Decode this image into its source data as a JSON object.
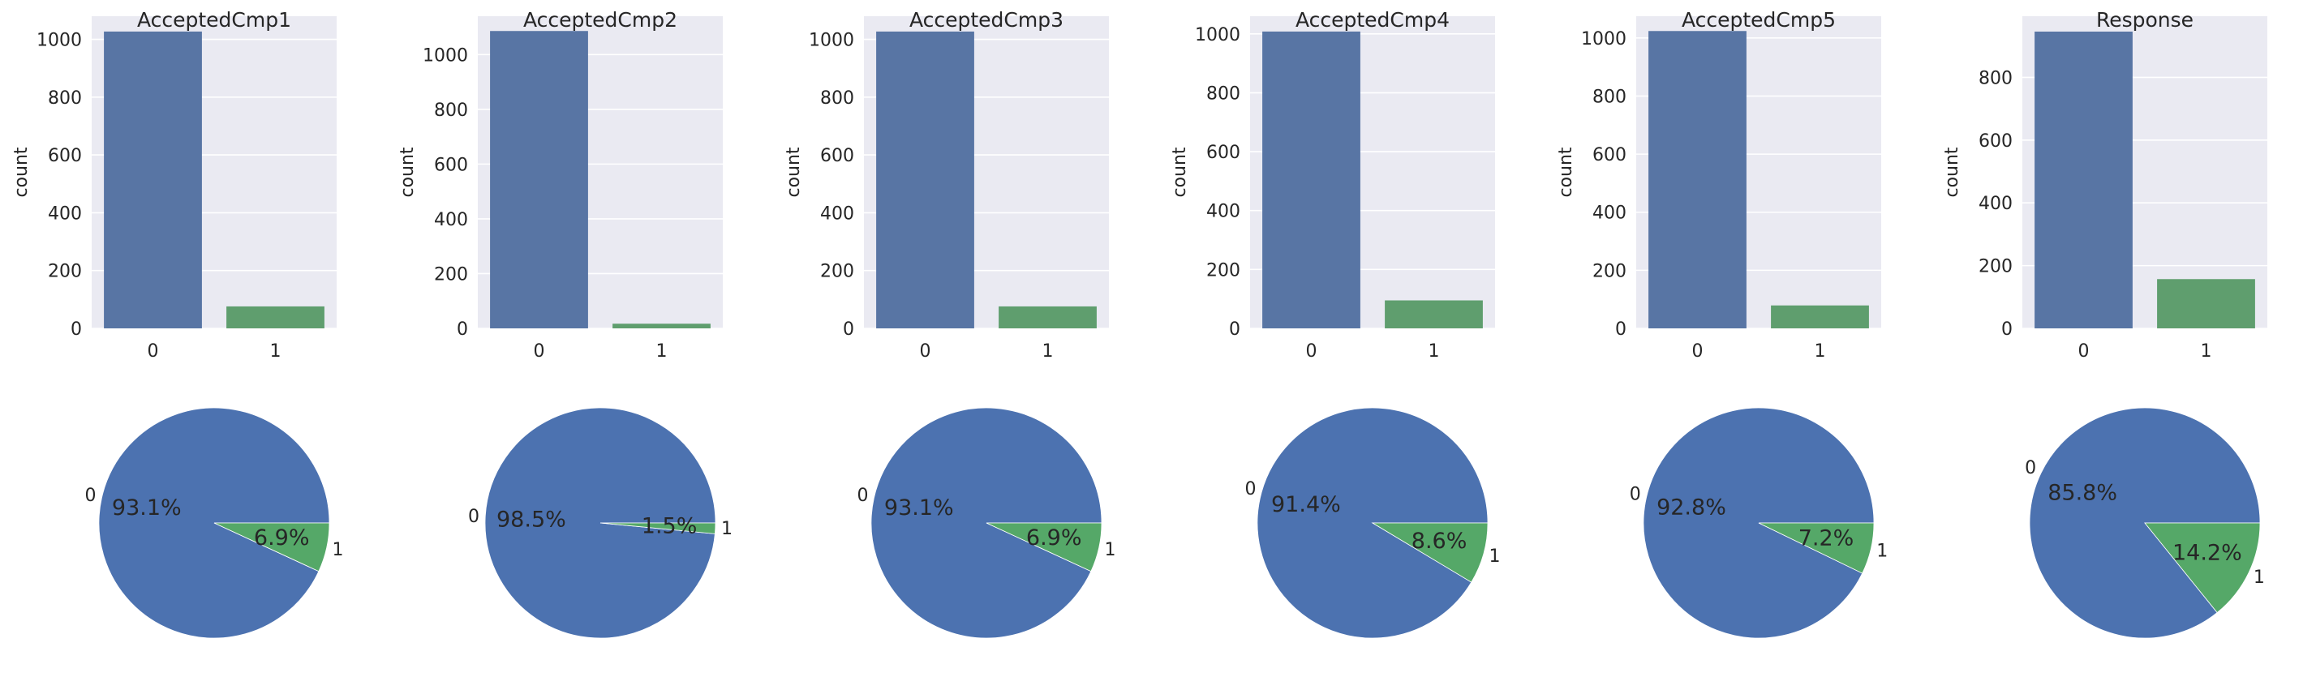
{
  "colors": {
    "class0": "#4C72B0",
    "class1": "#55A868",
    "bar0": "#5875A4",
    "bar1": "#5F9E6E",
    "axes_bg": "#EAEAF2",
    "grid": "#FFFFFF"
  },
  "chart_data": [
    {
      "type": "bar",
      "title": "AcceptedCmp1",
      "categories": [
        "0",
        "1"
      ],
      "values": [
        1027,
        76
      ],
      "ylabel": "count",
      "ylim": [
        0,
        1080
      ],
      "yticks": [
        "0",
        "200",
        "400",
        "600",
        "800",
        "1000"
      ],
      "grid": true
    },
    {
      "type": "bar",
      "title": "AcceptedCmp2",
      "categories": [
        "0",
        "1"
      ],
      "values": [
        1086,
        17
      ],
      "ylabel": "count",
      "ylim": [
        0,
        1140
      ],
      "yticks": [
        "0",
        "200",
        "400",
        "600",
        "800",
        "1000"
      ],
      "grid": true
    },
    {
      "type": "bar",
      "title": "AcceptedCmp3",
      "categories": [
        "0",
        "1"
      ],
      "values": [
        1027,
        76
      ],
      "ylabel": "count",
      "ylim": [
        0,
        1080
      ],
      "yticks": [
        "0",
        "200",
        "400",
        "600",
        "800",
        "1000"
      ],
      "grid": true
    },
    {
      "type": "bar",
      "title": "AcceptedCmp4",
      "categories": [
        "0",
        "1"
      ],
      "values": [
        1008,
        95
      ],
      "ylabel": "count",
      "ylim": [
        0,
        1060
      ],
      "yticks": [
        "0",
        "200",
        "400",
        "600",
        "800",
        "1000"
      ],
      "grid": true
    },
    {
      "type": "bar",
      "title": "AcceptedCmp5",
      "categories": [
        "0",
        "1"
      ],
      "values": [
        1024,
        79
      ],
      "ylabel": "count",
      "ylim": [
        0,
        1075
      ],
      "yticks": [
        "0",
        "200",
        "400",
        "600",
        "800",
        "1000"
      ],
      "grid": true
    },
    {
      "type": "bar",
      "title": "Response",
      "categories": [
        "0",
        "1"
      ],
      "values": [
        946,
        157
      ],
      "ylabel": "count",
      "ylim": [
        0,
        995
      ],
      "yticks": [
        "0",
        "200",
        "400",
        "600",
        "800"
      ],
      "grid": true
    },
    {
      "type": "pie",
      "labels": [
        "0",
        "1"
      ],
      "values": [
        93.1,
        6.9
      ],
      "pct_labels": [
        "93.1%",
        "6.9%"
      ]
    },
    {
      "type": "pie",
      "labels": [
        "0",
        "1"
      ],
      "values": [
        98.5,
        1.5
      ],
      "pct_labels": [
        "98.5%",
        "1.5%"
      ]
    },
    {
      "type": "pie",
      "labels": [
        "0",
        "1"
      ],
      "values": [
        93.1,
        6.9
      ],
      "pct_labels": [
        "93.1%",
        "6.9%"
      ]
    },
    {
      "type": "pie",
      "labels": [
        "0",
        "1"
      ],
      "values": [
        91.4,
        8.6
      ],
      "pct_labels": [
        "91.4%",
        "8.6%"
      ]
    },
    {
      "type": "pie",
      "labels": [
        "0",
        "1"
      ],
      "values": [
        92.8,
        7.2
      ],
      "pct_labels": [
        "92.8%",
        "7.2%"
      ]
    },
    {
      "type": "pie",
      "labels": [
        "0",
        "1"
      ],
      "values": [
        85.8,
        14.2
      ],
      "pct_labels": [
        "85.8%",
        "14.2%"
      ]
    }
  ]
}
